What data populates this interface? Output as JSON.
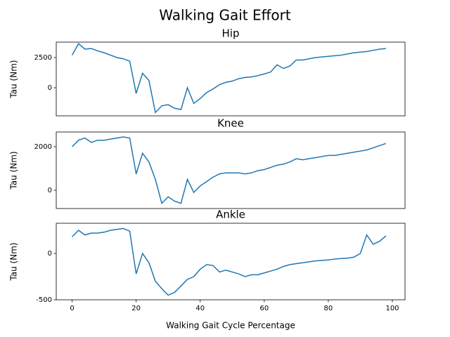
{
  "title": "Walking Gait Effort",
  "chart_data": [
    {
      "type": "line",
      "title": "Hip",
      "ylabel": "Tau (Nm)",
      "x": [
        0,
        2,
        4,
        6,
        8,
        10,
        12,
        14,
        16,
        18,
        20,
        22,
        24,
        26,
        28,
        30,
        32,
        34,
        36,
        38,
        40,
        42,
        44,
        46,
        48,
        50,
        52,
        54,
        56,
        58,
        60,
        62,
        64,
        66,
        68,
        70,
        72,
        74,
        76,
        78,
        80,
        82,
        84,
        86,
        88,
        90,
        92,
        94,
        96,
        98
      ],
      "series": [
        {
          "color": "#1f77b4",
          "values": [
            2700,
            3650,
            3200,
            3250,
            3050,
            2900,
            2700,
            2500,
            2400,
            2200,
            -470,
            1200,
            600,
            -2050,
            -1500,
            -1400,
            -1700,
            -1800,
            0,
            -1300,
            -900,
            -400,
            -100,
            250,
            450,
            550,
            750,
            850,
            900,
            1000,
            1150,
            1300,
            1900,
            1600,
            1800,
            2300,
            2300,
            2400,
            2500,
            2550,
            2600,
            2650,
            2700,
            2800,
            2900,
            2950,
            3000,
            3100,
            3200,
            3250
          ]
        }
      ],
      "xlim": [
        -4.95,
        103.95
      ],
      "ylim": [
        -2326,
        3779
      ],
      "yticks": [
        0,
        2500
      ]
    },
    {
      "type": "line",
      "title": "Knee",
      "ylabel": "Tau (Nm)",
      "x": [
        0,
        2,
        4,
        6,
        8,
        10,
        12,
        14,
        16,
        18,
        20,
        22,
        24,
        26,
        28,
        30,
        32,
        34,
        36,
        38,
        40,
        42,
        44,
        46,
        48,
        50,
        52,
        54,
        56,
        58,
        60,
        62,
        64,
        66,
        68,
        70,
        72,
        74,
        76,
        78,
        80,
        82,
        84,
        86,
        88,
        90,
        92,
        94,
        96,
        98
      ],
      "series": [
        {
          "color": "#1f77b4",
          "values": [
            2000,
            2300,
            2400,
            2200,
            2300,
            2300,
            2350,
            2400,
            2450,
            2400,
            750,
            1700,
            1300,
            500,
            -600,
            -300,
            -500,
            -600,
            500,
            -100,
            200,
            400,
            600,
            750,
            800,
            800,
            800,
            750,
            800,
            900,
            950,
            1050,
            1150,
            1200,
            1300,
            1450,
            1400,
            1450,
            1500,
            1550,
            1600,
            1600,
            1650,
            1700,
            1750,
            1800,
            1850,
            1950,
            2050,
            2150
          ]
        }
      ],
      "xlim": [
        -4.95,
        103.95
      ],
      "ylim": [
        -839,
        2677
      ],
      "yticks": [
        0,
        2000
      ]
    },
    {
      "type": "line",
      "title": "Ankle",
      "ylabel": "Tau (Nm)",
      "xlabel": "Walking Gait Cycle Percentage",
      "x": [
        0,
        2,
        4,
        6,
        8,
        10,
        12,
        14,
        16,
        18,
        20,
        22,
        24,
        26,
        28,
        30,
        32,
        34,
        36,
        38,
        40,
        42,
        44,
        46,
        48,
        50,
        52,
        54,
        56,
        58,
        60,
        62,
        64,
        66,
        68,
        70,
        72,
        74,
        76,
        78,
        80,
        82,
        84,
        86,
        88,
        90,
        92,
        94,
        96,
        98
      ],
      "series": [
        {
          "color": "#1f77b4",
          "values": [
            180,
            250,
            200,
            220,
            220,
            230,
            250,
            260,
            270,
            240,
            -220,
            0,
            -100,
            -300,
            -380,
            -450,
            -420,
            -350,
            -280,
            -250,
            -170,
            -120,
            -130,
            -200,
            -180,
            -200,
            -220,
            -250,
            -230,
            -230,
            -210,
            -190,
            -170,
            -140,
            -120,
            -110,
            -100,
            -90,
            -80,
            -75,
            -70,
            -60,
            -55,
            -50,
            -40,
            0,
            200,
            100,
            130,
            190
          ]
        }
      ],
      "xlim": [
        -4.95,
        103.95
      ],
      "ylim": [
        -500,
        326
      ],
      "yticks": [
        -500,
        0
      ],
      "xticks": [
        0,
        20,
        40,
        60,
        80,
        100
      ]
    }
  ]
}
